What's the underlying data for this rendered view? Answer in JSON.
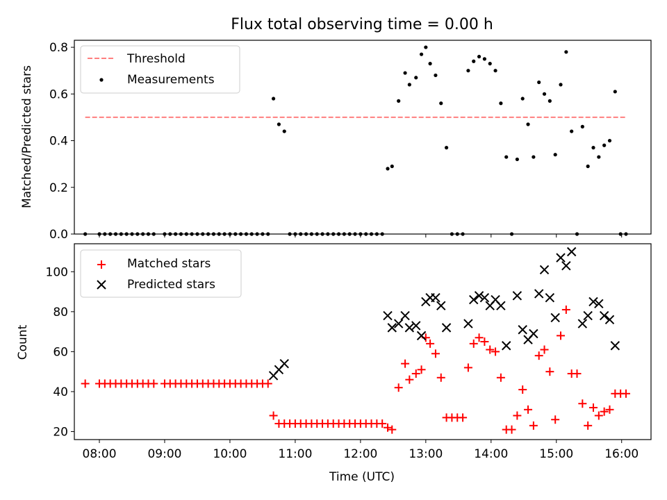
{
  "colors": {
    "threshold": "#ff7f7f",
    "measurement": "#000000",
    "matched": "#ff0000",
    "predicted": "#000000"
  },
  "chart_data": [
    {
      "type": "scatter",
      "title": "Flux total observing time = 0.00 h",
      "xlabel": "",
      "ylabel": "Matched/Predicted stars",
      "xlim": [
        "07:37",
        "16:27"
      ],
      "ylim": [
        0,
        0.83
      ],
      "yticks": [
        "0.0",
        "0.2",
        "0.4",
        "0.6",
        "0.8"
      ],
      "grid": false,
      "legend_position": "upper-left",
      "legend": [
        "Threshold",
        "Measurements"
      ],
      "threshold": {
        "name": "Threshold",
        "y": 0.5,
        "x": [
          "07:47",
          "16:04"
        ]
      },
      "series": [
        {
          "name": "Measurements",
          "points": [
            [
              "07:47",
              0.0
            ],
            [
              "08:00",
              0.0
            ],
            [
              "08:05",
              0.0
            ],
            [
              "08:10",
              0.0
            ],
            [
              "08:15",
              0.0
            ],
            [
              "08:20",
              0.0
            ],
            [
              "08:25",
              0.0
            ],
            [
              "08:30",
              0.0
            ],
            [
              "08:35",
              0.0
            ],
            [
              "08:40",
              0.0
            ],
            [
              "08:45",
              0.0
            ],
            [
              "08:50",
              0.0
            ],
            [
              "09:00",
              0.0
            ],
            [
              "09:05",
              0.0
            ],
            [
              "09:10",
              0.0
            ],
            [
              "09:15",
              0.0
            ],
            [
              "09:20",
              0.0
            ],
            [
              "09:25",
              0.0
            ],
            [
              "09:30",
              0.0
            ],
            [
              "09:35",
              0.0
            ],
            [
              "09:40",
              0.0
            ],
            [
              "09:45",
              0.0
            ],
            [
              "09:50",
              0.0
            ],
            [
              "09:55",
              0.0
            ],
            [
              "10:00",
              0.0
            ],
            [
              "10:05",
              0.0
            ],
            [
              "10:10",
              0.0
            ],
            [
              "10:15",
              0.0
            ],
            [
              "10:20",
              0.0
            ],
            [
              "10:25",
              0.0
            ],
            [
              "10:30",
              0.0
            ],
            [
              "10:35",
              0.0
            ],
            [
              "10:40",
              0.58
            ],
            [
              "10:45",
              0.47
            ],
            [
              "10:50",
              0.44
            ],
            [
              "10:55",
              0.0
            ],
            [
              "11:00",
              0.0
            ],
            [
              "11:05",
              0.0
            ],
            [
              "11:10",
              0.0
            ],
            [
              "11:15",
              0.0
            ],
            [
              "11:20",
              0.0
            ],
            [
              "11:25",
              0.0
            ],
            [
              "11:30",
              0.0
            ],
            [
              "11:35",
              0.0
            ],
            [
              "11:40",
              0.0
            ],
            [
              "11:45",
              0.0
            ],
            [
              "11:50",
              0.0
            ],
            [
              "11:55",
              0.0
            ],
            [
              "12:00",
              0.0
            ],
            [
              "12:05",
              0.0
            ],
            [
              "12:10",
              0.0
            ],
            [
              "12:15",
              0.0
            ],
            [
              "12:20",
              0.0
            ],
            [
              "12:25",
              0.28
            ],
            [
              "12:29",
              0.29
            ],
            [
              "12:35",
              0.57
            ],
            [
              "12:41",
              0.69
            ],
            [
              "12:45",
              0.64
            ],
            [
              "12:51",
              0.67
            ],
            [
              "12:56",
              0.77
            ],
            [
              "13:00",
              0.8
            ],
            [
              "13:04",
              0.73
            ],
            [
              "13:09",
              0.68
            ],
            [
              "13:14",
              0.56
            ],
            [
              "13:19",
              0.37
            ],
            [
              "13:24",
              0.0
            ],
            [
              "13:29",
              0.0
            ],
            [
              "13:34",
              0.0
            ],
            [
              "13:39",
              0.7
            ],
            [
              "13:44",
              0.74
            ],
            [
              "13:49",
              0.76
            ],
            [
              "13:54",
              0.75
            ],
            [
              "13:59",
              0.73
            ],
            [
              "14:04",
              0.7
            ],
            [
              "14:09",
              0.56
            ],
            [
              "14:14",
              0.33
            ],
            [
              "14:19",
              0.0
            ],
            [
              "14:24",
              0.32
            ],
            [
              "14:29",
              0.58
            ],
            [
              "14:34",
              0.47
            ],
            [
              "14:39",
              0.33
            ],
            [
              "14:44",
              0.65
            ],
            [
              "14:49",
              0.6
            ],
            [
              "14:54",
              0.57
            ],
            [
              "14:59",
              0.34
            ],
            [
              "15:04",
              0.64
            ],
            [
              "15:09",
              0.78
            ],
            [
              "15:14",
              0.44
            ],
            [
              "15:19",
              0.0
            ],
            [
              "15:24",
              0.46
            ],
            [
              "15:29",
              0.29
            ],
            [
              "15:34",
              0.37
            ],
            [
              "15:39",
              0.33
            ],
            [
              "15:44",
              0.38
            ],
            [
              "15:49",
              0.4
            ],
            [
              "15:54",
              0.61
            ],
            [
              "15:59",
              0.0
            ],
            [
              "16:04",
              0.0
            ]
          ]
        }
      ]
    },
    {
      "type": "scatter",
      "title": "",
      "xlabel": "Time (UTC)",
      "ylabel": "Count",
      "xlim": [
        "07:37",
        "16:27"
      ],
      "ylim": [
        16,
        114
      ],
      "xticks": [
        "08:00",
        "09:00",
        "10:00",
        "11:00",
        "12:00",
        "13:00",
        "14:00",
        "15:00",
        "16:00"
      ],
      "yticks": [
        "20",
        "40",
        "60",
        "80",
        "100"
      ],
      "grid": false,
      "legend_position": "upper-left",
      "legend": [
        "Matched stars",
        "Predicted stars"
      ],
      "series": [
        {
          "name": "Matched stars",
          "marker": "+",
          "points": [
            [
              "07:47",
              44
            ],
            [
              "08:00",
              44
            ],
            [
              "08:05",
              44
            ],
            [
              "08:10",
              44
            ],
            [
              "08:15",
              44
            ],
            [
              "08:20",
              44
            ],
            [
              "08:25",
              44
            ],
            [
              "08:30",
              44
            ],
            [
              "08:35",
              44
            ],
            [
              "08:40",
              44
            ],
            [
              "08:45",
              44
            ],
            [
              "08:50",
              44
            ],
            [
              "09:00",
              44
            ],
            [
              "09:05",
              44
            ],
            [
              "09:10",
              44
            ],
            [
              "09:15",
              44
            ],
            [
              "09:20",
              44
            ],
            [
              "09:25",
              44
            ],
            [
              "09:30",
              44
            ],
            [
              "09:35",
              44
            ],
            [
              "09:40",
              44
            ],
            [
              "09:45",
              44
            ],
            [
              "09:50",
              44
            ],
            [
              "09:55",
              44
            ],
            [
              "10:00",
              44
            ],
            [
              "10:05",
              44
            ],
            [
              "10:10",
              44
            ],
            [
              "10:15",
              44
            ],
            [
              "10:20",
              44
            ],
            [
              "10:25",
              44
            ],
            [
              "10:30",
              44
            ],
            [
              "10:35",
              44
            ],
            [
              "10:40",
              28
            ],
            [
              "10:45",
              24
            ],
            [
              "10:50",
              24
            ],
            [
              "10:55",
              24
            ],
            [
              "11:00",
              24
            ],
            [
              "11:05",
              24
            ],
            [
              "11:10",
              24
            ],
            [
              "11:15",
              24
            ],
            [
              "11:20",
              24
            ],
            [
              "11:25",
              24
            ],
            [
              "11:30",
              24
            ],
            [
              "11:35",
              24
            ],
            [
              "11:40",
              24
            ],
            [
              "11:45",
              24
            ],
            [
              "11:50",
              24
            ],
            [
              "11:55",
              24
            ],
            [
              "12:00",
              24
            ],
            [
              "12:05",
              24
            ],
            [
              "12:10",
              24
            ],
            [
              "12:15",
              24
            ],
            [
              "12:20",
              24
            ],
            [
              "12:25",
              22
            ],
            [
              "12:29",
              21
            ],
            [
              "12:35",
              42
            ],
            [
              "12:41",
              54
            ],
            [
              "12:45",
              46
            ],
            [
              "12:51",
              49
            ],
            [
              "12:56",
              51
            ],
            [
              "13:00",
              67
            ],
            [
              "13:04",
              64
            ],
            [
              "13:09",
              59
            ],
            [
              "13:14",
              47
            ],
            [
              "13:19",
              27
            ],
            [
              "13:24",
              27
            ],
            [
              "13:29",
              27
            ],
            [
              "13:34",
              27
            ],
            [
              "13:39",
              52
            ],
            [
              "13:44",
              64
            ],
            [
              "13:49",
              67
            ],
            [
              "13:54",
              65
            ],
            [
              "13:59",
              61
            ],
            [
              "14:04",
              60
            ],
            [
              "14:09",
              47
            ],
            [
              "14:14",
              21
            ],
            [
              "14:19",
              21
            ],
            [
              "14:24",
              28
            ],
            [
              "14:29",
              41
            ],
            [
              "14:34",
              31
            ],
            [
              "14:39",
              23
            ],
            [
              "14:44",
              58
            ],
            [
              "14:49",
              61
            ],
            [
              "14:54",
              50
            ],
            [
              "14:59",
              26
            ],
            [
              "15:04",
              68
            ],
            [
              "15:09",
              81
            ],
            [
              "15:14",
              49
            ],
            [
              "15:19",
              49
            ],
            [
              "15:24",
              34
            ],
            [
              "15:29",
              23
            ],
            [
              "15:34",
              32
            ],
            [
              "15:39",
              28
            ],
            [
              "15:44",
              30
            ],
            [
              "15:49",
              31
            ],
            [
              "15:54",
              39
            ],
            [
              "15:59",
              39
            ],
            [
              "16:04",
              39
            ]
          ]
        },
        {
          "name": "Predicted stars",
          "marker": "x",
          "points": [
            [
              "10:40",
              48
            ],
            [
              "10:45",
              51
            ],
            [
              "10:50",
              54
            ],
            [
              "12:25",
              78
            ],
            [
              "12:29",
              72
            ],
            [
              "12:35",
              74
            ],
            [
              "12:41",
              78
            ],
            [
              "12:45",
              72
            ],
            [
              "12:51",
              73
            ],
            [
              "12:56",
              68
            ],
            [
              "13:00",
              85
            ],
            [
              "13:04",
              87
            ],
            [
              "13:09",
              87
            ],
            [
              "13:14",
              83
            ],
            [
              "13:19",
              72
            ],
            [
              "13:39",
              74
            ],
            [
              "13:44",
              86
            ],
            [
              "13:49",
              88
            ],
            [
              "13:54",
              87
            ],
            [
              "13:59",
              83
            ],
            [
              "14:04",
              86
            ],
            [
              "14:09",
              83
            ],
            [
              "14:14",
              63
            ],
            [
              "14:24",
              88
            ],
            [
              "14:29",
              71
            ],
            [
              "14:34",
              66
            ],
            [
              "14:39",
              69
            ],
            [
              "14:44",
              89
            ],
            [
              "14:49",
              101
            ],
            [
              "14:54",
              87
            ],
            [
              "14:59",
              77
            ],
            [
              "15:04",
              107
            ],
            [
              "15:09",
              103
            ],
            [
              "15:14",
              110
            ],
            [
              "15:24",
              74
            ],
            [
              "15:29",
              78
            ],
            [
              "15:34",
              85
            ],
            [
              "15:39",
              84
            ],
            [
              "15:44",
              78
            ],
            [
              "15:49",
              76
            ],
            [
              "15:54",
              63
            ]
          ]
        }
      ]
    }
  ]
}
